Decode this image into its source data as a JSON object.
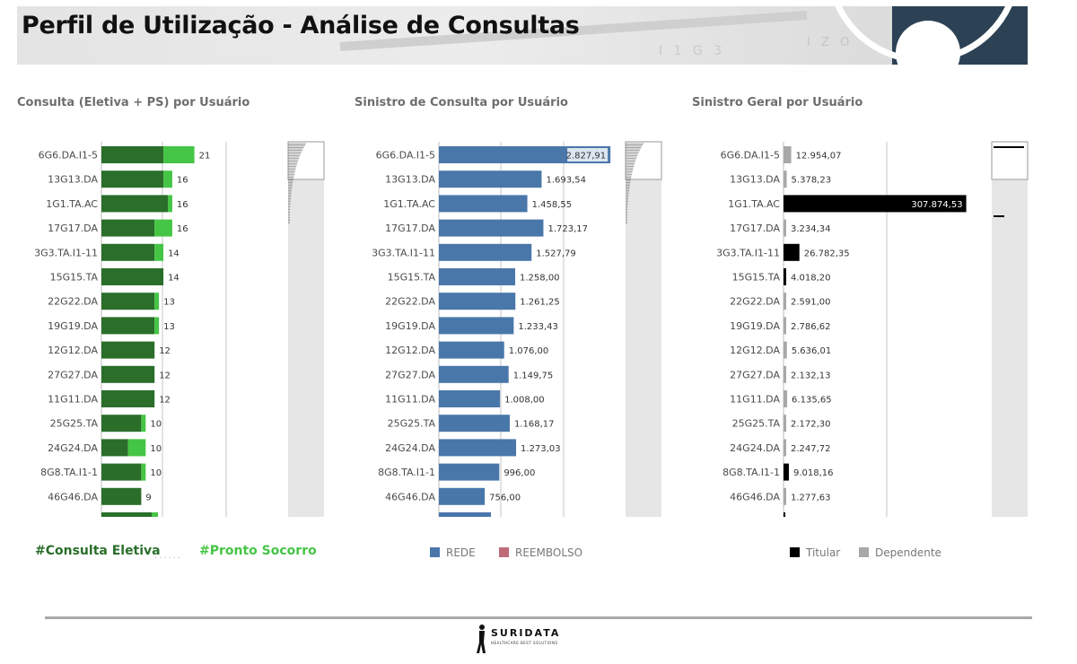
{
  "header": {
    "title": "Perfil de Utilização - Análise de Consultas"
  },
  "colors": {
    "eletiva": "#2a6e2a",
    "pronto_socorro": "#45c545",
    "rede": "#4a77aa",
    "reembolso": "#c06a78",
    "titular": "#000000",
    "dependente": "#a8a8a8"
  },
  "chart_data": [
    {
      "type": "bar",
      "orientation": "horizontal",
      "stacked": true,
      "title": "Consulta (Eletiva + PS) por Usuário",
      "categories": [
        "6G6.DA.I1-5",
        "13G13.DA",
        "1G1.TA.AC",
        "17G17.DA",
        "3G3.TA.I1-11",
        "15G15.TA",
        "22G22.DA",
        "19G19.DA",
        "12G12.DA",
        "27G27.DA",
        "11G11.DA",
        "25G25.TA",
        "24G24.DA",
        "8G8.TA.I1-1",
        "46G46.DA"
      ],
      "series": [
        {
          "name": "#Consulta Eletiva",
          "values": [
            14,
            14,
            15,
            12,
            12,
            14,
            12,
            12,
            12,
            12,
            12,
            9,
            6,
            9,
            9
          ]
        },
        {
          "name": "#Pronto Socorro",
          "values": [
            7,
            2,
            1,
            4,
            2,
            0,
            1,
            1,
            0,
            0,
            0,
            1,
            4,
            1,
            0
          ]
        }
      ],
      "totals": [
        "21",
        "16",
        "16",
        "16",
        "14",
        "14",
        "13",
        "13",
        "12",
        "12",
        "12",
        "10",
        "10",
        "10",
        "9"
      ],
      "xlim": [
        0,
        30
      ],
      "legend": "bottom"
    },
    {
      "type": "bar",
      "orientation": "horizontal",
      "stacked": true,
      "title": "Sinistro de Consulta por Usuário",
      "categories": [
        "6G6.DA.I1-5",
        "13G13.DA",
        "1G1.TA.AC",
        "17G17.DA",
        "3G3.TA.I1-11",
        "15G15.TA",
        "22G22.DA",
        "19G19.DA",
        "12G12.DA",
        "27G27.DA",
        "11G11.DA",
        "25G25.TA",
        "24G24.DA",
        "8G8.TA.I1-1",
        "46G46.DA"
      ],
      "series": [
        {
          "name": "REDE",
          "values": [
            2827.91,
            1693.54,
            1458.55,
            1723.17,
            1527.79,
            1258.0,
            1261.25,
            1233.43,
            1076.0,
            1149.75,
            1008.0,
            1168.17,
            1273.03,
            996.0,
            756.0
          ]
        },
        {
          "name": "REEMBOLSO",
          "values": [
            0,
            0,
            0,
            0,
            0,
            0,
            0,
            0,
            0,
            0,
            0,
            0,
            0,
            0,
            0
          ]
        }
      ],
      "value_labels": [
        "2.827,91",
        "1.693,54",
        "1.458,55",
        "1.723,17",
        "1.527,79",
        "1.258,00",
        "1.261,25",
        "1.233,43",
        "1.076,00",
        "1.149,75",
        "1.008,00",
        "1.168,17",
        "1.273,03",
        "996,00",
        "756,00"
      ],
      "xlim": [
        0,
        2900
      ],
      "legend": "bottom"
    },
    {
      "type": "bar",
      "orientation": "horizontal",
      "title": "Sinistro Geral por Usuário",
      "categories": [
        "6G6.DA.I1-5",
        "13G13.DA",
        "1G1.TA.AC",
        "17G17.DA",
        "3G3.TA.I1-11",
        "15G15.TA",
        "22G22.DA",
        "19G19.DA",
        "12G12.DA",
        "27G27.DA",
        "11G11.DA",
        "25G25.TA",
        "24G24.DA",
        "8G8.TA.I1-1",
        "46G46.DA"
      ],
      "values": [
        12954.07,
        5378.23,
        307874.53,
        3234.34,
        26782.35,
        4018.2,
        2591.0,
        2786.62,
        5636.01,
        2132.13,
        6135.65,
        2172.3,
        2247.72,
        9018.16,
        1277.63
      ],
      "groups": [
        "Dependente",
        "Dependente",
        "Titular",
        "Dependente",
        "Titular",
        "Titular",
        "Dependente",
        "Dependente",
        "Dependente",
        "Dependente",
        "Dependente",
        "Dependente",
        "Dependente",
        "Titular",
        "Dependente"
      ],
      "value_labels": [
        "12.954,07",
        "5.378,23",
        "307.874,53",
        "3.234,34",
        "26.782,35",
        "4.018,20",
        "2.591,00",
        "2.786,62",
        "5.636,01",
        "2.132,13",
        "6.135,65",
        "2.172,30",
        "2.247,72",
        "9.018,16",
        "1.277,63"
      ],
      "series_names": [
        "Titular",
        "Dependente"
      ],
      "xlim": [
        0,
        310000
      ],
      "legend": "bottom"
    }
  ],
  "footer": {
    "brand": "SURIDATA",
    "tagline": "HEALTHCARE BEST SOLUTIONS"
  }
}
